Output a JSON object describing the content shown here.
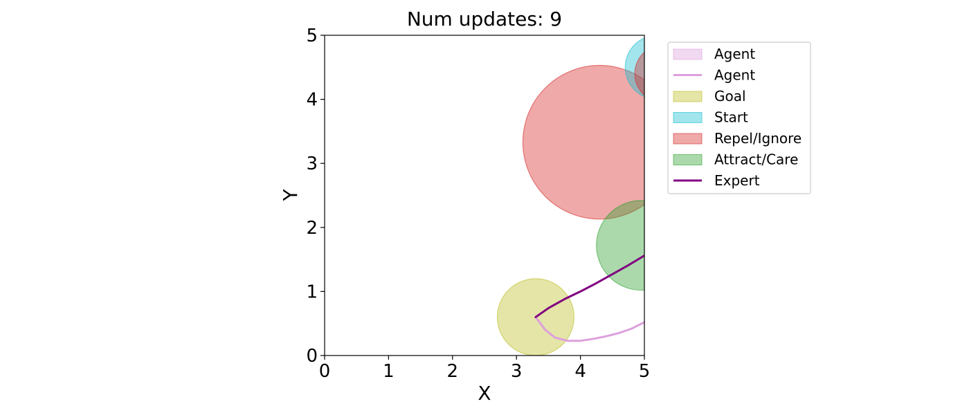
{
  "chart_data": {
    "type": "scatter",
    "title": "Num updates: 9",
    "xlabel": "X",
    "ylabel": "Y",
    "xlim": [
      0,
      5
    ],
    "ylim": [
      0,
      5
    ],
    "xticks": [
      "0",
      "1",
      "2",
      "3",
      "4",
      "5"
    ],
    "yticks": [
      "0",
      "1",
      "2",
      "3",
      "4",
      "5"
    ],
    "grid": false,
    "legend_position": "outside-top-right",
    "circles": [
      {
        "name": "Repel/Ignore",
        "cx": 4.3,
        "cy": 3.33,
        "r": 1.2,
        "color": "#d62728",
        "alpha": 0.4
      },
      {
        "name": "Start",
        "cx": 5.2,
        "cy": 4.5,
        "r": 0.5,
        "color": "#17becf",
        "alpha": 0.4
      },
      {
        "name": "Repel/Ignore",
        "cx": 5.3,
        "cy": 4.4,
        "r": 0.45,
        "color": "#d62728",
        "alpha": 0.4
      },
      {
        "name": "Attract/Care",
        "cx": 4.95,
        "cy": 1.72,
        "r": 0.7,
        "color": "#2ca02c",
        "alpha": 0.4
      },
      {
        "name": "Goal",
        "cx": 3.3,
        "cy": 0.6,
        "r": 0.6,
        "color": "#bcbd22",
        "alpha": 0.4
      }
    ],
    "series": [
      {
        "name": "Agent",
        "color": "#dda0dd",
        "x": [
          3.3,
          3.45,
          3.6,
          3.8,
          4.0,
          4.2,
          4.4,
          4.6,
          4.8,
          5.0
        ],
        "y": [
          0.6,
          0.4,
          0.28,
          0.23,
          0.23,
          0.26,
          0.3,
          0.35,
          0.42,
          0.52
        ]
      },
      {
        "name": "Expert",
        "color": "#800080",
        "x": [
          3.3,
          3.5,
          3.75,
          4.0,
          4.25,
          4.5,
          4.75,
          5.0
        ],
        "y": [
          0.6,
          0.74,
          0.88,
          1.0,
          1.13,
          1.27,
          1.41,
          1.56
        ]
      }
    ],
    "legend": [
      {
        "label": "Agent",
        "kind": "patch",
        "color": "#dda0dd",
        "alpha": 0.4
      },
      {
        "label": "Agent",
        "kind": "line",
        "color": "#dda0dd"
      },
      {
        "label": "Goal",
        "kind": "patch",
        "color": "#bcbd22",
        "alpha": 0.4
      },
      {
        "label": "Start",
        "kind": "patch",
        "color": "#17becf",
        "alpha": 0.4
      },
      {
        "label": "Repel/Ignore",
        "kind": "patch",
        "color": "#d62728",
        "alpha": 0.4
      },
      {
        "label": "Attract/Care",
        "kind": "patch",
        "color": "#2ca02c",
        "alpha": 0.4
      },
      {
        "label": "Expert",
        "kind": "line",
        "color": "#800080"
      }
    ]
  }
}
